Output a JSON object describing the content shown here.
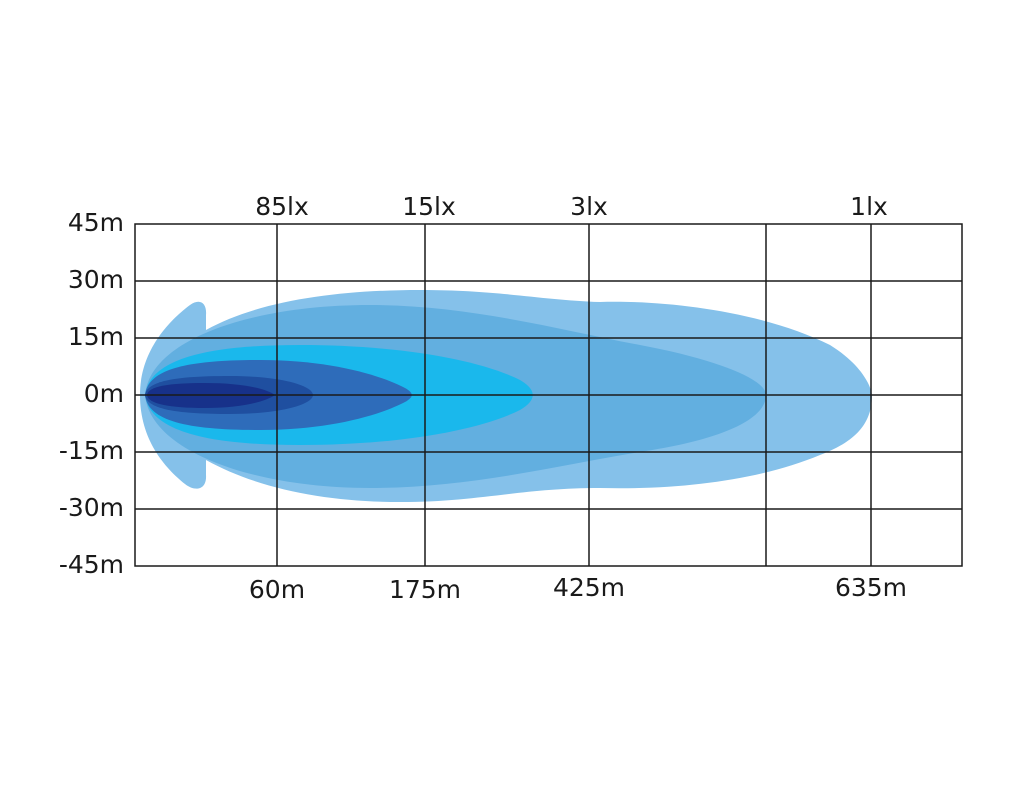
{
  "chart": {
    "top_labels": [
      "85lx",
      "15lx",
      "3lx",
      "1lx"
    ],
    "bottom_labels": [
      "60m",
      "175m",
      "425m",
      "635m"
    ],
    "y_labels": [
      "45m",
      "30m",
      "15m",
      "0m",
      "-15m",
      "-30m",
      "-45m"
    ]
  }
}
